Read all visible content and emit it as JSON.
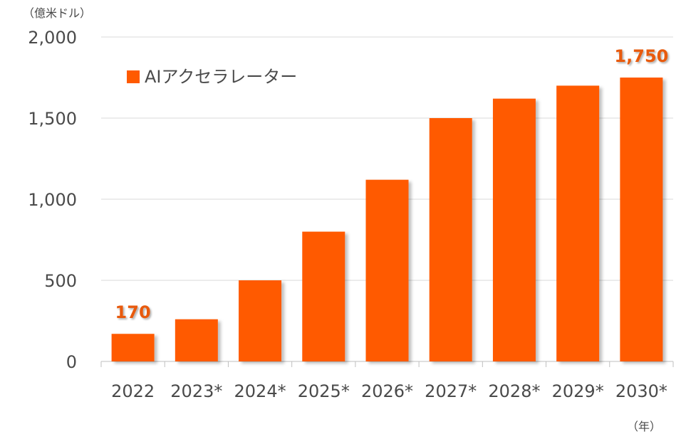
{
  "chart_data": {
    "type": "bar",
    "y_unit_label": "（億米ドル）",
    "x_unit_label": "（年）",
    "categories": [
      "2022",
      "2023*",
      "2024*",
      "2025*",
      "2026*",
      "2027*",
      "2028*",
      "2029*",
      "2030*"
    ],
    "series": [
      {
        "name": "AIアクセラレーター",
        "values": [
          170,
          260,
          500,
          800,
          1120,
          1500,
          1620,
          1700,
          1750
        ]
      }
    ],
    "data_labels": [
      {
        "category": "2022",
        "text": "170"
      },
      {
        "category": "2030*",
        "text": "1,750"
      }
    ],
    "yticks": [
      0,
      500,
      1000,
      1500,
      2000
    ],
    "ytick_labels": [
      "0",
      "500",
      "1,000",
      "1,500",
      "2,000"
    ],
    "ylim": [
      0,
      2000
    ],
    "grid": true,
    "legend_position": "top-left",
    "colors": {
      "bar": "#FF5A00",
      "label": "#E85A0C",
      "grid": "#d9d9d9",
      "text": "#4a4a4a"
    }
  }
}
